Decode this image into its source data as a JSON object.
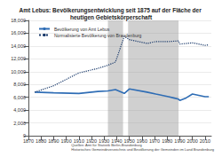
{
  "chart_data": {
    "type": "line",
    "title": "Amt Lebus: Bevölkerungsentwicklung seit 1875 auf der Fläche der heutigen Gebietskörperschaft",
    "source": [
      "Quellen: Amt für Statistik Berlin-Brandenburg",
      "Historisches Gemeindeverzeichnis und Bevölkerung der Gemeinden im Land Brandenburg"
    ],
    "series": [
      {
        "name": "Bevölkerung von Amt Lebus",
        "color": "#2f6db5",
        "line_style": "solid",
        "x": [
          1875,
          1890,
          1910,
          1925,
          1933,
          1939,
          1946,
          1950,
          1964,
          1971,
          1981,
          1985,
          1989,
          1990,
          1995,
          2000,
          2005,
          2010,
          2013
        ],
        "values": [
          6800,
          6700,
          6600,
          6900,
          7000,
          7200,
          6600,
          7300,
          6800,
          6500,
          6100,
          5900,
          5700,
          5500,
          5900,
          6500,
          6300,
          6100,
          6100
        ]
      },
      {
        "name": "Normalisierte Bevölkerung von Brandenburg",
        "color": "#1a3a6b",
        "line_style": "dotted",
        "x": [
          1875,
          1890,
          1900,
          1910,
          1925,
          1933,
          1939,
          1946,
          1950,
          1964,
          1971,
          1981,
          1989,
          1990,
          2000,
          2010,
          2013
        ],
        "values": [
          6800,
          7800,
          8800,
          9800,
          10500,
          11000,
          11500,
          15500,
          15000,
          14400,
          14700,
          14700,
          14800,
          14300,
          14500,
          14100,
          14200
        ]
      }
    ],
    "shaded": [
      [
        1933,
        1945
      ],
      [
        1949,
        1989
      ]
    ],
    "xlim": [
      1870,
      2015
    ],
    "xticks": [
      1870,
      1880,
      1890,
      1900,
      1910,
      1920,
      1930,
      1940,
      1950,
      1960,
      1970,
      1980,
      1990,
      2000,
      2010
    ],
    "ylim": [
      0,
      18000
    ],
    "yticks": [
      0,
      {
        "value": 2000,
        "label": "2,000"
      },
      {
        "value": 4000,
        "label": "4,000"
      },
      {
        "value": 6000,
        "label": "6,000"
      },
      {
        "value": 8000,
        "label": "8,000"
      },
      {
        "value": 10000,
        "label": "10,000"
      },
      {
        "value": 12000,
        "label": "12,000"
      },
      {
        "value": 14000,
        "label": "14,000"
      },
      {
        "value": 16000,
        "label": "16,000"
      },
      {
        "value": 18000,
        "label": "18,000"
      }
    ],
    "grid": true,
    "legend": "top-left"
  }
}
